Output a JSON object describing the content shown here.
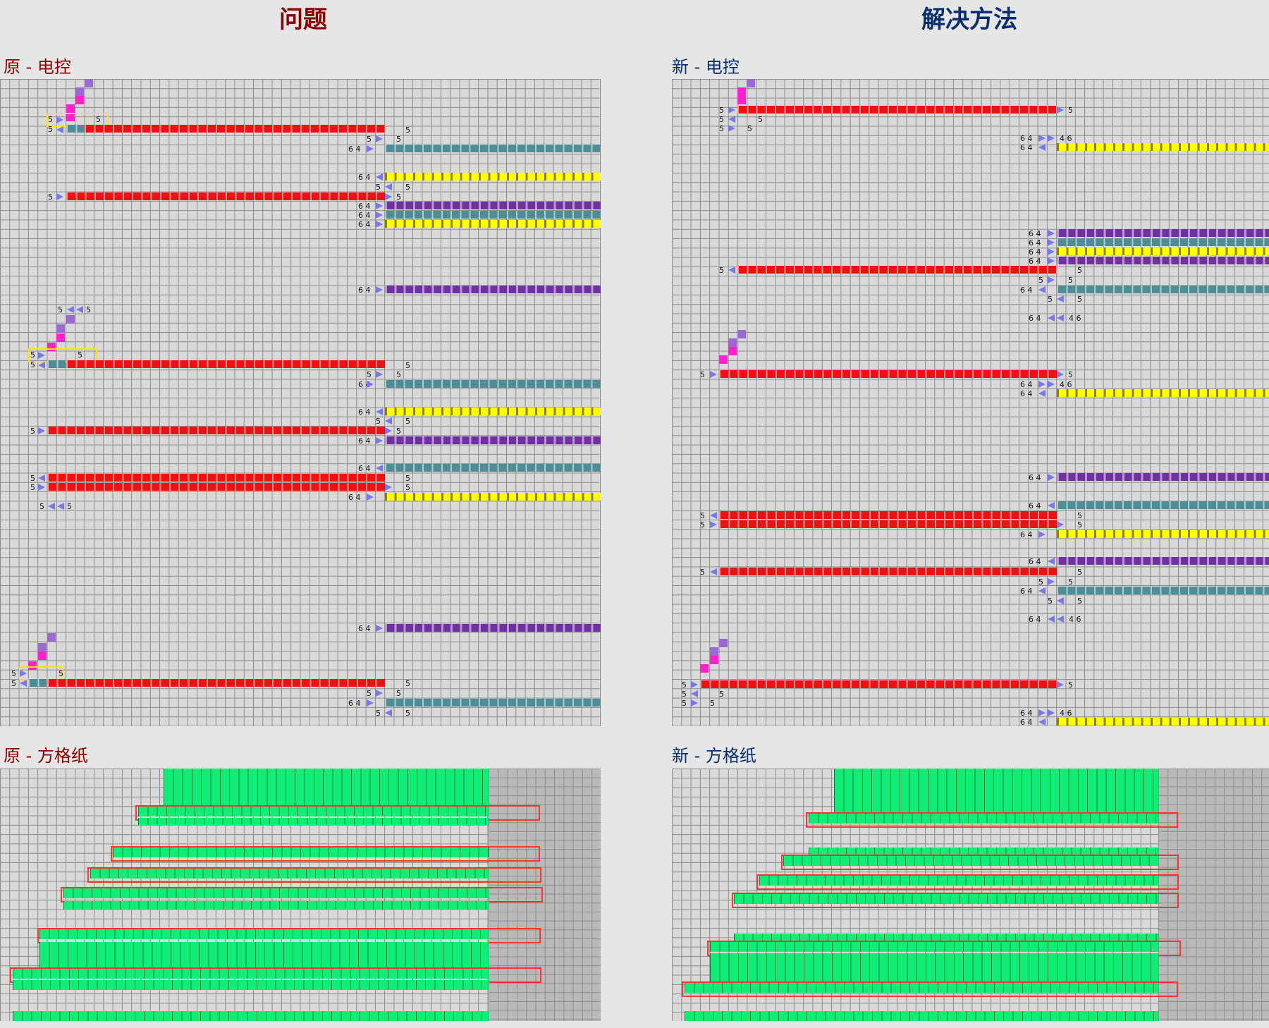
{
  "header": {
    "problem_title": "问题",
    "solution_title": "解决方法",
    "problem_color": "#8b0000",
    "solution_color": "#0b2f6e"
  },
  "sections": {
    "old_ec": "原 - 电控",
    "new_ec": "新 - 电控",
    "old_grid": "原 - 方格纸",
    "new_grid": "新 - 方格纸"
  },
  "colors": {
    "red": "#ee1111",
    "yellow": "#ffff00",
    "purple": "#7030a0",
    "teal": "#4e8c96",
    "blue": "#0000dd",
    "green": "#11ee77",
    "highlight_yellow": "#ffe400",
    "highlight_red": "#ff3333"
  },
  "labels": {
    "five": "5",
    "six_four": "6 4",
    "four_six": "4 6"
  }
}
